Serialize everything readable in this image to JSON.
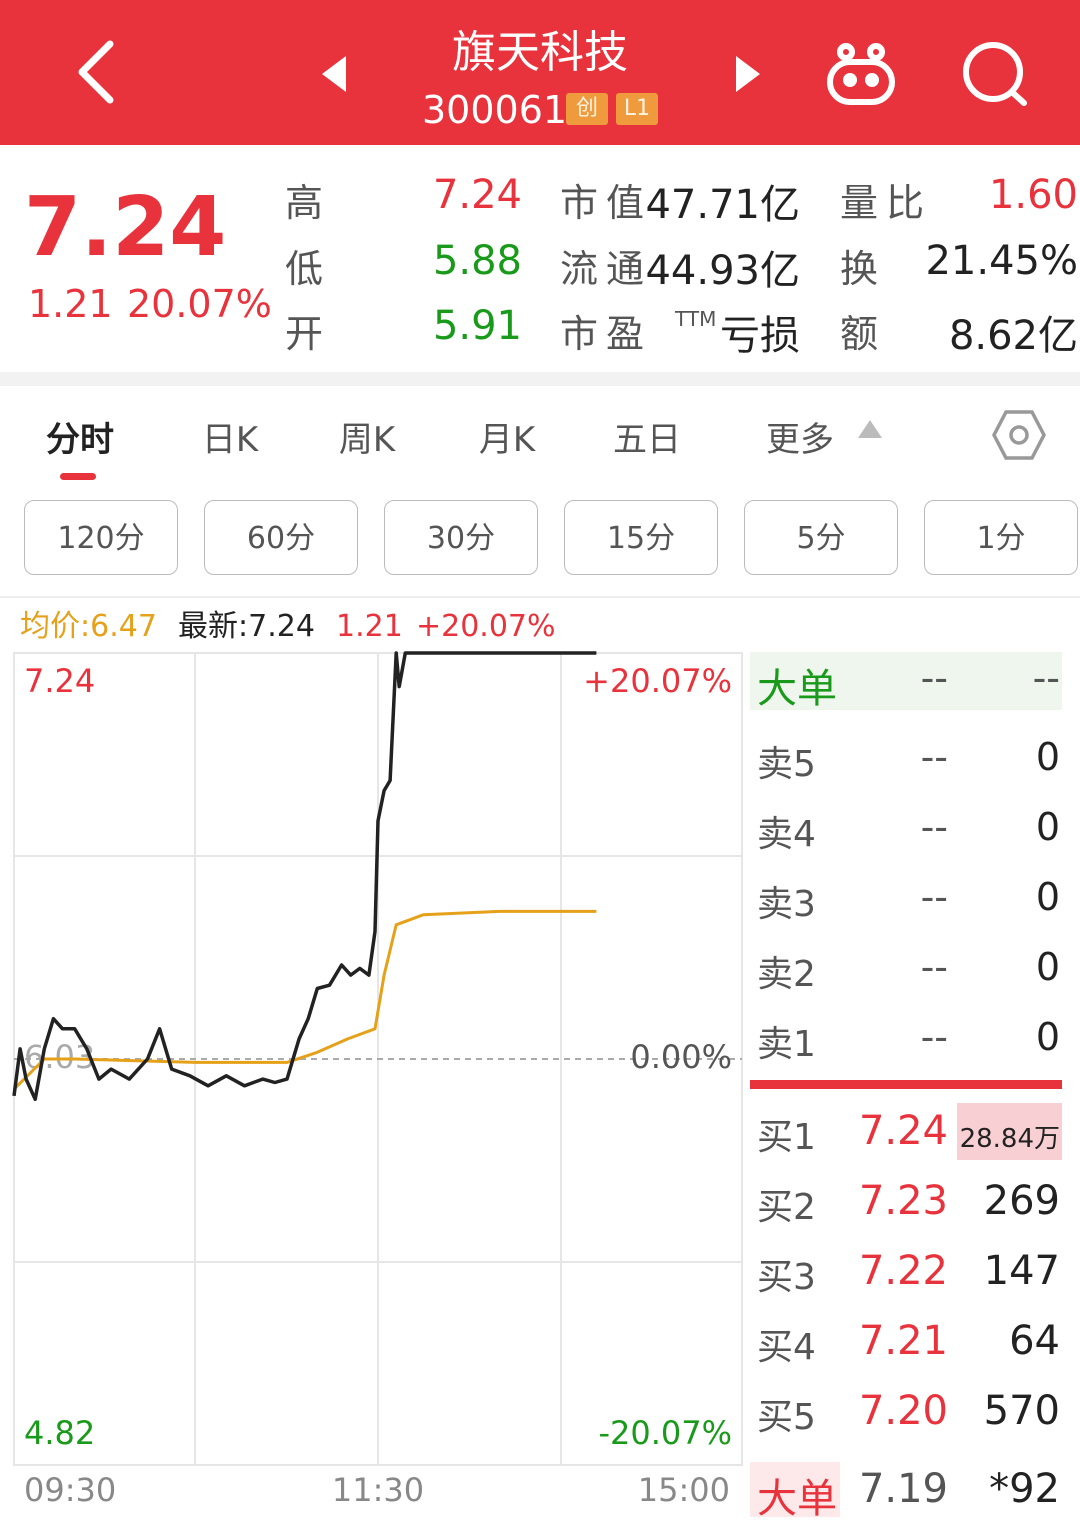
{
  "header": {
    "title": "旗天科技",
    "code": "300061",
    "badges": [
      "创",
      "L1"
    ]
  },
  "quote": {
    "price": "7.24",
    "change": "1.21",
    "change_pct": "20.07%",
    "stats": [
      [
        {
          "label": "高",
          "value": "7.24"
        },
        {
          "label": "市值",
          "value": "47.71亿"
        },
        {
          "label": "量比",
          "value": "1.60"
        }
      ],
      [
        {
          "label": "低",
          "value": "5.88"
        },
        {
          "label": "流通",
          "value": "44.93亿"
        },
        {
          "label": "换",
          "value": "21.45%"
        }
      ],
      [
        {
          "label": "开",
          "value": "5.91"
        },
        {
          "label": "市盈",
          "label_sup": "TTM",
          "value": "亏损"
        },
        {
          "label": "额",
          "value": "8.62亿"
        }
      ]
    ]
  },
  "tabs": [
    "分时",
    "日K",
    "周K",
    "月K",
    "五日",
    "更多"
  ],
  "periods": [
    "120分",
    "60分",
    "30分",
    "15分",
    "5分",
    "1分"
  ],
  "chart_data": {
    "type": "line",
    "info": [
      {
        "label": "均价:",
        "value": "6.47"
      },
      {
        "label": "最新:",
        "value": "7.24"
      },
      {
        "label": "",
        "value": "1.21"
      },
      {
        "label": "",
        "value": "+20.07%"
      }
    ],
    "series": [
      {
        "name": "均价",
        "color": "#e5a11a",
        "x": [
          "09:30",
          "09:40",
          "09:50",
          "10:30",
          "11:00",
          "11:10",
          "11:20",
          "11:29",
          "13:02",
          "13:06",
          "13:15",
          "13:40",
          "14:12"
        ],
        "values": [
          5.94,
          6.03,
          6.03,
          6.02,
          6.02,
          6.05,
          6.09,
          6.12,
          6.28,
          6.43,
          6.46,
          6.47,
          6.47
        ]
      },
      {
        "name": "最新",
        "color": "#222222",
        "x": [
          "09:30",
          "09:32",
          "09:34",
          "09:37",
          "09:40",
          "09:43",
          "09:46",
          "09:50",
          "09:54",
          "09:58",
          "10:02",
          "10:08",
          "10:14",
          "10:18",
          "10:22",
          "10:28",
          "10:34",
          "10:40",
          "10:46",
          "10:52",
          "10:56",
          "11:00",
          "11:04",
          "11:07",
          "11:10",
          "11:14",
          "11:18",
          "11:21",
          "11:24",
          "11:27",
          "11:29",
          "11:30",
          "13:02",
          "13:04",
          "13:06",
          "13:07",
          "13:09",
          "14:12"
        ],
        "values": [
          5.92,
          6.06,
          5.97,
          5.91,
          6.06,
          6.15,
          6.12,
          6.12,
          6.06,
          5.97,
          6.0,
          5.97,
          6.03,
          6.12,
          6.0,
          5.98,
          5.95,
          5.98,
          5.95,
          5.97,
          5.96,
          5.97,
          6.09,
          6.15,
          6.24,
          6.25,
          6.31,
          6.28,
          6.3,
          6.28,
          6.41,
          6.74,
          6.83,
          6.86,
          7.24,
          7.14,
          7.24,
          7.24
        ]
      }
    ],
    "ylim": [
      4.82,
      7.24
    ],
    "yticks": [
      7.24,
      6.03,
      4.82
    ],
    "y2lim": [
      -20.07,
      20.07
    ],
    "y2ticks": [
      {
        "value": 20.07,
        "label": "+20.07%"
      },
      {
        "value": 0,
        "label": "0.00%"
      },
      {
        "value": -20.07,
        "label": "-20.07%"
      }
    ],
    "xticks": [
      "09:30",
      "11:30",
      "15:00"
    ]
  },
  "order_book": {
    "big_order": {
      "label": "大单",
      "price": "--",
      "volume": "--"
    },
    "asks": [
      {
        "label": "卖5",
        "price": "--",
        "volume": "0"
      },
      {
        "label": "卖4",
        "price": "--",
        "volume": "0"
      },
      {
        "label": "卖3",
        "price": "--",
        "volume": "0"
      },
      {
        "label": "卖2",
        "price": "--",
        "volume": "0"
      },
      {
        "label": "卖1",
        "price": "--",
        "volume": "0"
      }
    ],
    "bids": [
      {
        "label": "买1",
        "price": "7.24",
        "volume": "28.84万"
      },
      {
        "label": "买2",
        "price": "7.23",
        "volume": "269"
      },
      {
        "label": "买3",
        "price": "7.22",
        "volume": "147"
      },
      {
        "label": "买4",
        "price": "7.21",
        "volume": "64"
      },
      {
        "label": "买5",
        "price": "7.20",
        "volume": "570"
      }
    ],
    "footer": {
      "label": "大单",
      "price": "7.19",
      "volume": "*92"
    }
  }
}
